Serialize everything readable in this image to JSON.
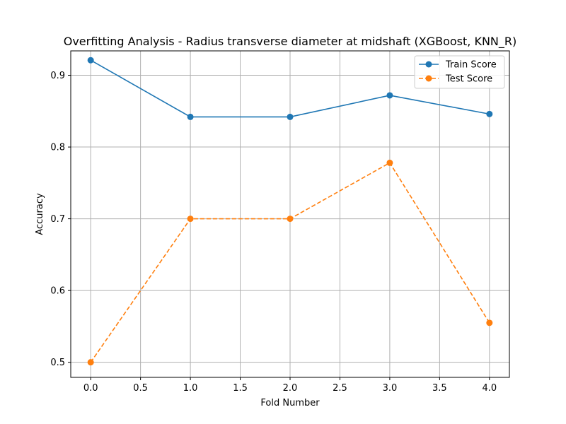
{
  "chart_data": {
    "type": "line",
    "title": "Overfitting Analysis - Radius transverse diameter at midshaft (XGBoost, KNN_R)",
    "xlabel": "Fold Number",
    "ylabel": "Accuracy",
    "x": [
      0,
      1,
      2,
      3,
      4
    ],
    "xlim": [
      -0.2,
      4.2
    ],
    "ylim": [
      0.479,
      0.934
    ],
    "xticks": [
      0.0,
      0.5,
      1.0,
      1.5,
      2.0,
      2.5,
      3.0,
      3.5,
      4.0
    ],
    "xtick_labels": [
      "0.0",
      "0.5",
      "1.0",
      "1.5",
      "2.0",
      "2.5",
      "3.0",
      "3.5",
      "4.0"
    ],
    "yticks": [
      0.5,
      0.6,
      0.7,
      0.8,
      0.9
    ],
    "ytick_labels": [
      "0.5",
      "0.6",
      "0.7",
      "0.8",
      "0.9"
    ],
    "grid": true,
    "legend_position": "top-right",
    "series": [
      {
        "name": "Train Score",
        "values": [
          0.921,
          0.842,
          0.842,
          0.872,
          0.846
        ],
        "color": "#1f77b4",
        "line_style": "solid",
        "marker": "circle"
      },
      {
        "name": "Test Score",
        "values": [
          0.5,
          0.7,
          0.7,
          0.778,
          0.555
        ],
        "color": "#ff7f0e",
        "line_style": "dashed",
        "marker": "circle"
      }
    ]
  }
}
